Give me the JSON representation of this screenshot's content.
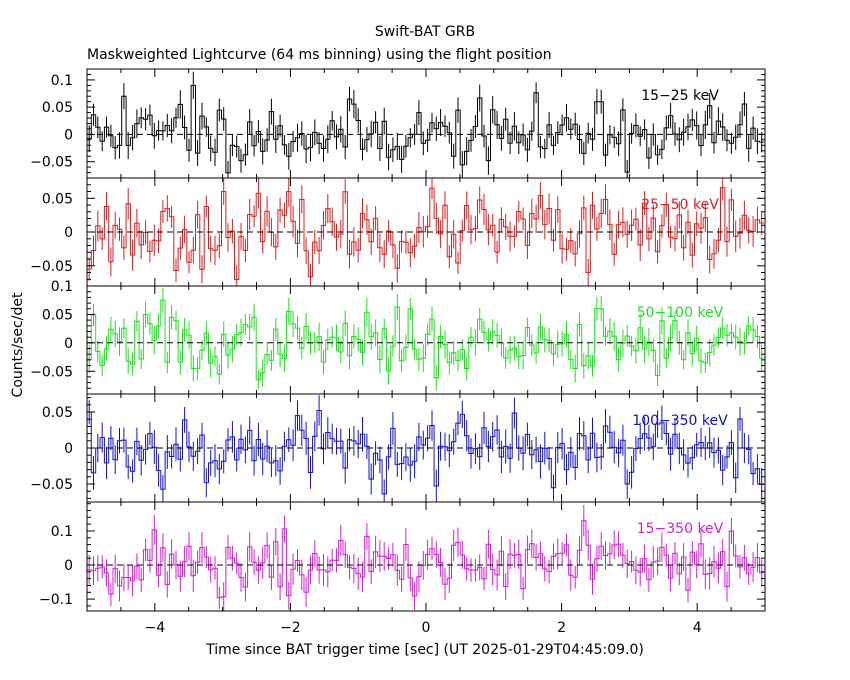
{
  "chart_data": {
    "type": "line",
    "title": "Swift-BAT GRB",
    "subtitle": "Maskweighted Lightcurve (64 ms binning) using the flight position",
    "xlabel": "Time since BAT trigger time [sec] (UT 2025-01-29T04:45:09.0)",
    "ylabel": "Counts/sec/det",
    "xlim": [
      -5,
      5
    ],
    "x_ticks": [
      -4,
      -2,
      0,
      2,
      4
    ],
    "x_tick_labels": [
      "−4",
      "−2",
      "0",
      "2",
      "4"
    ],
    "bin_width_s": 0.064,
    "panels": [
      {
        "name": "15-25 keV",
        "label": "15−25 keV",
        "color": "#000000",
        "ylim": [
          -0.08,
          0.12
        ],
        "y_ticks": [
          -0.05,
          0,
          0.05,
          0.1
        ],
        "y_tick_labels": [
          "−0.05",
          "0",
          "0.05",
          "0.1"
        ],
        "noise_sigma": 0.028,
        "error": 0.022,
        "seed": 11,
        "features": [
          {
            "t": -4.45,
            "value": 0.07
          },
          {
            "t": -3.45,
            "value": 0.09
          },
          {
            "t": -3.6,
            "value": 0.055
          },
          {
            "t": 2.55,
            "value": 0.06
          }
        ]
      },
      {
        "name": "25-50 keV",
        "label": "25−50 keV",
        "color": "#d42020",
        "ylim": [
          -0.08,
          0.08
        ],
        "y_ticks": [
          -0.05,
          0,
          0.05
        ],
        "y_tick_labels": [
          "−0.05",
          "0",
          "0.05"
        ],
        "noise_sigma": 0.026,
        "error": 0.02,
        "seed": 23,
        "features": [
          {
            "t": -4.95,
            "value": -0.055
          },
          {
            "t": -3.0,
            "value": 0.06
          },
          {
            "t": 2.4,
            "value": -0.06
          }
        ]
      },
      {
        "name": "50-100 keV",
        "label": "50−100 keV",
        "color": "#22dd22",
        "ylim": [
          -0.09,
          0.1
        ],
        "y_ticks": [
          -0.05,
          0,
          0.05,
          0.1
        ],
        "y_tick_labels": [
          "−0.05",
          "0",
          "0.05",
          "0.1"
        ],
        "noise_sigma": 0.026,
        "error": 0.021,
        "seed": 37,
        "features": [
          {
            "t": -3.9,
            "value": 0.075
          },
          {
            "t": -3.4,
            "value": -0.045
          },
          {
            "t": -2.45,
            "value": -0.065
          },
          {
            "t": 2.55,
            "value": 0.06
          }
        ]
      },
      {
        "name": "100-350 keV",
        "label": "100−350 keV",
        "color": "#1010c8",
        "ylim": [
          -0.075,
          0.075
        ],
        "y_ticks": [
          -0.05,
          0,
          0.05
        ],
        "y_tick_labels": [
          "−0.05",
          "0",
          "0.05"
        ],
        "noise_sigma": 0.024,
        "error": 0.02,
        "seed": 53,
        "features": [
          {
            "t": -4.95,
            "value": 0.05
          },
          {
            "t": -1.9,
            "value": 0.045
          },
          {
            "t": 2.95,
            "value": -0.05
          }
        ]
      },
      {
        "name": "15-350 keV",
        "label": "15−350 keV",
        "color": "#d020d0",
        "ylim": [
          -0.135,
          0.185
        ],
        "y_ticks": [
          -0.1,
          0,
          0.1
        ],
        "y_tick_labels": [
          "−0.1",
          "0",
          "0.1"
        ],
        "noise_sigma": 0.045,
        "error": 0.04,
        "seed": 71,
        "features": [
          {
            "t": 2.35,
            "value": 0.13
          },
          {
            "t": 4.5,
            "value": 0.1
          },
          {
            "t": -2.0,
            "value": -0.09
          }
        ]
      }
    ]
  }
}
